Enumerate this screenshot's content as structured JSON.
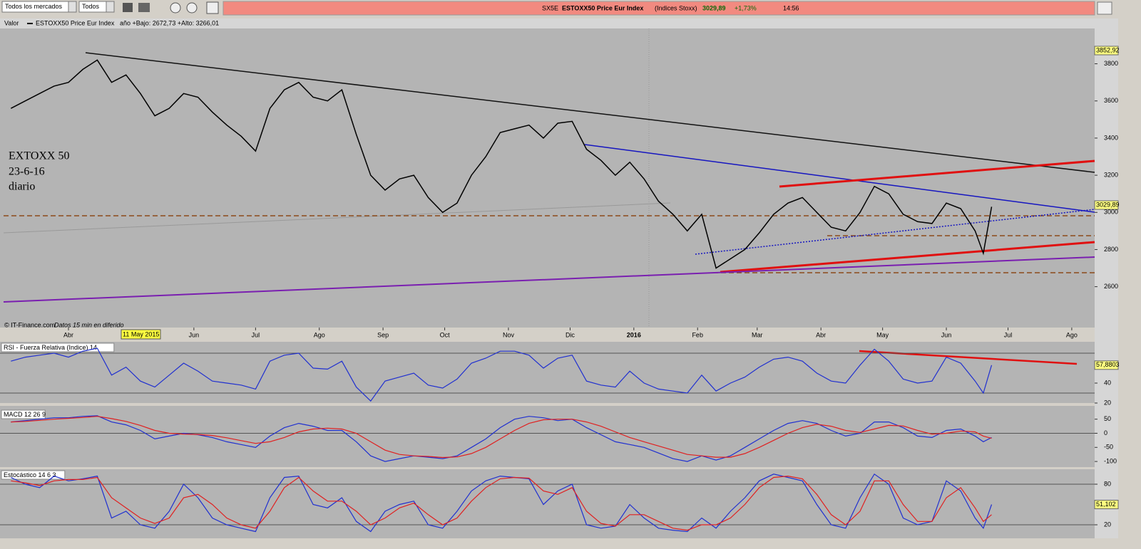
{
  "toolbar": {
    "market": "Todos los mercados",
    "filter": "Todos"
  },
  "quote": {
    "symbol": "SX5E",
    "name": "ESTOXX50 Price Eur Index",
    "exchange": "(Indices Stoxx)",
    "last": "3029,89",
    "change": "+1,73%",
    "time": "14:56"
  },
  "header": {
    "label": "Valor",
    "name": "ESTOXX50 Price Eur Index",
    "range": "año +Bajo: 2672,73 +Alto: 3266,01"
  },
  "annotation": [
    "EXTOXX 50",
    "23-6-16",
    "diario"
  ],
  "footer": {
    "source": "© IT-Finance.com",
    "delay": "Datos 15 min en diferido",
    "cursor_date": "11 May 2015"
  },
  "price_labels": {
    "high": "3852,92",
    "last": "3029,89"
  },
  "x": [
    3,
    10,
    17,
    24,
    31,
    38,
    45,
    52,
    59,
    66,
    73,
    80,
    87,
    94,
    101,
    108,
    115,
    122,
    129,
    136,
    143,
    150,
    157,
    164,
    171,
    178,
    185,
    192,
    199,
    206,
    213,
    220,
    227,
    234,
    241,
    248,
    255,
    262,
    269,
    276,
    283,
    290,
    297,
    304,
    311,
    318,
    325,
    332,
    339,
    346,
    353,
    360,
    367,
    374,
    381,
    388,
    395,
    402,
    409,
    416,
    423,
    430,
    437,
    444,
    451,
    458,
    465,
    472,
    476,
    480
  ],
  "xlim": [
    -2.3,
    528.4
  ],
  "xticks": [
    {
      "value": 31,
      "label": "Abr"
    },
    {
      "value": 92,
      "label": "Jun"
    },
    {
      "value": 122,
      "label": "Jul"
    },
    {
      "value": 153,
      "label": "Ago"
    },
    {
      "value": 184,
      "label": "Sep"
    },
    {
      "value": 214,
      "label": "Oct"
    },
    {
      "value": 245,
      "label": "Nov"
    },
    {
      "value": 275,
      "label": "Dic"
    },
    {
      "value": 306,
      "label": "2016"
    },
    {
      "value": 337,
      "label": "Feb"
    },
    {
      "value": 366,
      "label": "Mar"
    },
    {
      "value": 397,
      "label": "Abr"
    },
    {
      "value": 427,
      "label": "May"
    },
    {
      "value": 458,
      "label": "Jun"
    },
    {
      "value": 488,
      "label": "Jul"
    },
    {
      "value": 519,
      "label": "Ago"
    }
  ],
  "panels": [
    {
      "ylim": [
        2380,
        3990
      ],
      "yticks": [
        2600,
        2800,
        3000,
        3200,
        3400,
        3600,
        3800
      ],
      "series": [
        {
          "color": "#000000",
          "values": [
            3560,
            3600,
            3640,
            3680,
            3700,
            3770,
            3820,
            3700,
            3740,
            3640,
            3520,
            3560,
            3640,
            3620,
            3540,
            3470,
            3410,
            3330,
            3560,
            3660,
            3700,
            3620,
            3600,
            3660,
            3420,
            3200,
            3120,
            3180,
            3200,
            3080,
            3000,
            3050,
            3200,
            3300,
            3430,
            3450,
            3470,
            3400,
            3480,
            3490,
            3340,
            3280,
            3200,
            3270,
            3180,
            3060,
            2990,
            2900,
            2990,
            2700,
            2750,
            2800,
            2890,
            2990,
            3050,
            3080,
            3000,
            2920,
            2900,
            3000,
            3140,
            3100,
            2990,
            2950,
            2940,
            3050,
            3020,
            2900,
            2780,
            3030
          ]
        }
      ]
    },
    {
      "title": "RSI - Fuerza Relativa (Indice) 14",
      "value_label": "57,8803",
      "ylim": [
        20,
        80
      ],
      "yticks": [
        20,
        40
      ],
      "levels": [
        30,
        70
      ],
      "series": [
        {
          "color": "#2030d0",
          "values": [
            62,
            66,
            68,
            70,
            66,
            72,
            75,
            48,
            56,
            42,
            36,
            48,
            60,
            52,
            42,
            40,
            38,
            34,
            62,
            68,
            70,
            55,
            54,
            62,
            36,
            22,
            42,
            46,
            50,
            38,
            35,
            44,
            60,
            65,
            72,
            72,
            68,
            55,
            65,
            68,
            42,
            38,
            36,
            52,
            40,
            34,
            32,
            30,
            48,
            32,
            40,
            46,
            56,
            64,
            66,
            62,
            50,
            42,
            40,
            58,
            74,
            62,
            44,
            40,
            42,
            66,
            60,
            42,
            30,
            58
          ]
        }
      ]
    },
    {
      "title": "MACD 12 26 9",
      "ylim": [
        -120,
        82
      ],
      "yticks": [
        -100,
        -50,
        0,
        50
      ],
      "levels": [
        0
      ],
      "series": [
        {
          "color": "#2030d0",
          "values": [
            40,
            45,
            50,
            55,
            55,
            60,
            62,
            40,
            30,
            10,
            -20,
            -10,
            0,
            -5,
            -15,
            -30,
            -40,
            -50,
            -10,
            20,
            35,
            25,
            10,
            10,
            -30,
            -80,
            -100,
            -90,
            -80,
            -85,
            -90,
            -80,
            -50,
            -20,
            20,
            50,
            60,
            55,
            45,
            50,
            20,
            -5,
            -30,
            -40,
            -50,
            -70,
            -90,
            -100,
            -80,
            -95,
            -80,
            -50,
            -20,
            10,
            35,
            45,
            35,
            10,
            -10,
            0,
            40,
            40,
            20,
            -10,
            -15,
            10,
            15,
            -10,
            -30,
            -15
          ]
        },
        {
          "color": "#e02020",
          "values": [
            40,
            42,
            46,
            50,
            53,
            56,
            60,
            52,
            42,
            28,
            10,
            0,
            -3,
            -4,
            -8,
            -16,
            -26,
            -36,
            -30,
            -15,
            5,
            15,
            18,
            15,
            0,
            -30,
            -60,
            -75,
            -80,
            -82,
            -86,
            -84,
            -72,
            -50,
            -20,
            10,
            35,
            48,
            50,
            50,
            40,
            25,
            5,
            -15,
            -30,
            -45,
            -60,
            -75,
            -80,
            -85,
            -85,
            -72,
            -50,
            -25,
            0,
            20,
            32,
            25,
            10,
            3,
            15,
            28,
            26,
            10,
            -3,
            0,
            8,
            5,
            -10,
            -18
          ]
        }
      ]
    },
    {
      "title": "Estocástico 14 6 3",
      "value_label": "51,102",
      "ylim": [
        0,
        100
      ],
      "yticks": [
        20,
        80
      ],
      "levels": [
        20,
        80
      ],
      "series": [
        {
          "color": "#2030d0",
          "values": [
            90,
            80,
            75,
            92,
            85,
            88,
            92,
            30,
            40,
            20,
            15,
            40,
            80,
            60,
            30,
            20,
            15,
            10,
            60,
            90,
            92,
            50,
            45,
            60,
            25,
            10,
            40,
            50,
            55,
            20,
            15,
            40,
            70,
            85,
            92,
            90,
            88,
            50,
            70,
            80,
            20,
            15,
            18,
            50,
            30,
            15,
            12,
            10,
            30,
            15,
            40,
            60,
            85,
            95,
            90,
            85,
            50,
            20,
            15,
            60,
            95,
            80,
            30,
            20,
            25,
            85,
            70,
            30,
            15,
            50
          ]
        },
        {
          "color": "#e02020",
          "values": [
            85,
            82,
            78,
            85,
            87,
            87,
            90,
            60,
            45,
            30,
            22,
            30,
            60,
            65,
            50,
            30,
            20,
            15,
            40,
            75,
            90,
            70,
            55,
            55,
            40,
            20,
            30,
            45,
            52,
            35,
            20,
            30,
            55,
            75,
            88,
            90,
            89,
            70,
            65,
            75,
            40,
            22,
            18,
            35,
            35,
            25,
            15,
            12,
            20,
            20,
            30,
            50,
            75,
            90,
            92,
            88,
            65,
            35,
            20,
            40,
            85,
            85,
            50,
            25,
            25,
            60,
            75,
            45,
            25,
            35
          ]
        }
      ]
    }
  ]
}
